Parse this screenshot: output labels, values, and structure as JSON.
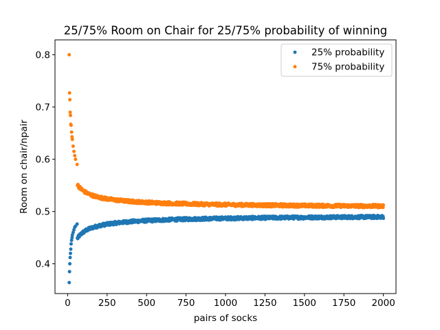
{
  "chart_data": {
    "type": "scatter",
    "title": "25/75% Room on Chair for 25/75% probability of winning",
    "xlabel": "pairs of socks",
    "ylabel": "Room on chair/npair",
    "xlim": [
      -80,
      2080
    ],
    "ylim": [
      0.343,
      0.8285
    ],
    "xticks": [
      0,
      250,
      500,
      750,
      1000,
      1250,
      1500,
      1750,
      2000
    ],
    "yticks": [
      0.4,
      0.5,
      0.6,
      0.7,
      0.8
    ],
    "xtick_labels": [
      "0",
      "250",
      "500",
      "750",
      "1000",
      "1250",
      "1500",
      "1750",
      "2000"
    ],
    "ytick_labels": [
      "0.4",
      "0.5",
      "0.6",
      "0.7",
      "0.8"
    ],
    "grid": false,
    "legend_position": "top-right",
    "x_range": [
      10,
      2000
    ],
    "series": [
      {
        "name": "25% probability",
        "color": "#1f77b4",
        "trend": {
          "asymptote": 0.4947,
          "coefficient": -0.65,
          "exponent": 0.64,
          "noise": 0.003
        },
        "points": [
          [
            10,
            0.364
          ],
          [
            12,
            0.385
          ],
          [
            14,
            0.4
          ],
          [
            16,
            0.412
          ],
          [
            18,
            0.42
          ],
          [
            20,
            0.428
          ],
          [
            22,
            0.438
          ],
          [
            25,
            0.445
          ],
          [
            28,
            0.45
          ],
          [
            30,
            0.455
          ],
          [
            35,
            0.46
          ],
          [
            40,
            0.465
          ],
          [
            45,
            0.47
          ],
          [
            50,
            0.472
          ],
          [
            60,
            0.476
          ]
        ]
      },
      {
        "name": "75% probability",
        "color": "#ff7f0e",
        "trend": {
          "asymptote": 0.5053,
          "coefficient": 0.65,
          "exponent": 0.64,
          "noise": 0.003
        },
        "points": [
          [
            10,
            0.8
          ],
          [
            12,
            0.727
          ],
          [
            14,
            0.714
          ],
          [
            16,
            0.69
          ],
          [
            18,
            0.684
          ],
          [
            20,
            0.667
          ],
          [
            22,
            0.665
          ],
          [
            25,
            0.652
          ],
          [
            28,
            0.643
          ],
          [
            30,
            0.638
          ],
          [
            35,
            0.625
          ],
          [
            40,
            0.615
          ],
          [
            45,
            0.607
          ],
          [
            50,
            0.6
          ],
          [
            60,
            0.59
          ]
        ]
      }
    ]
  }
}
